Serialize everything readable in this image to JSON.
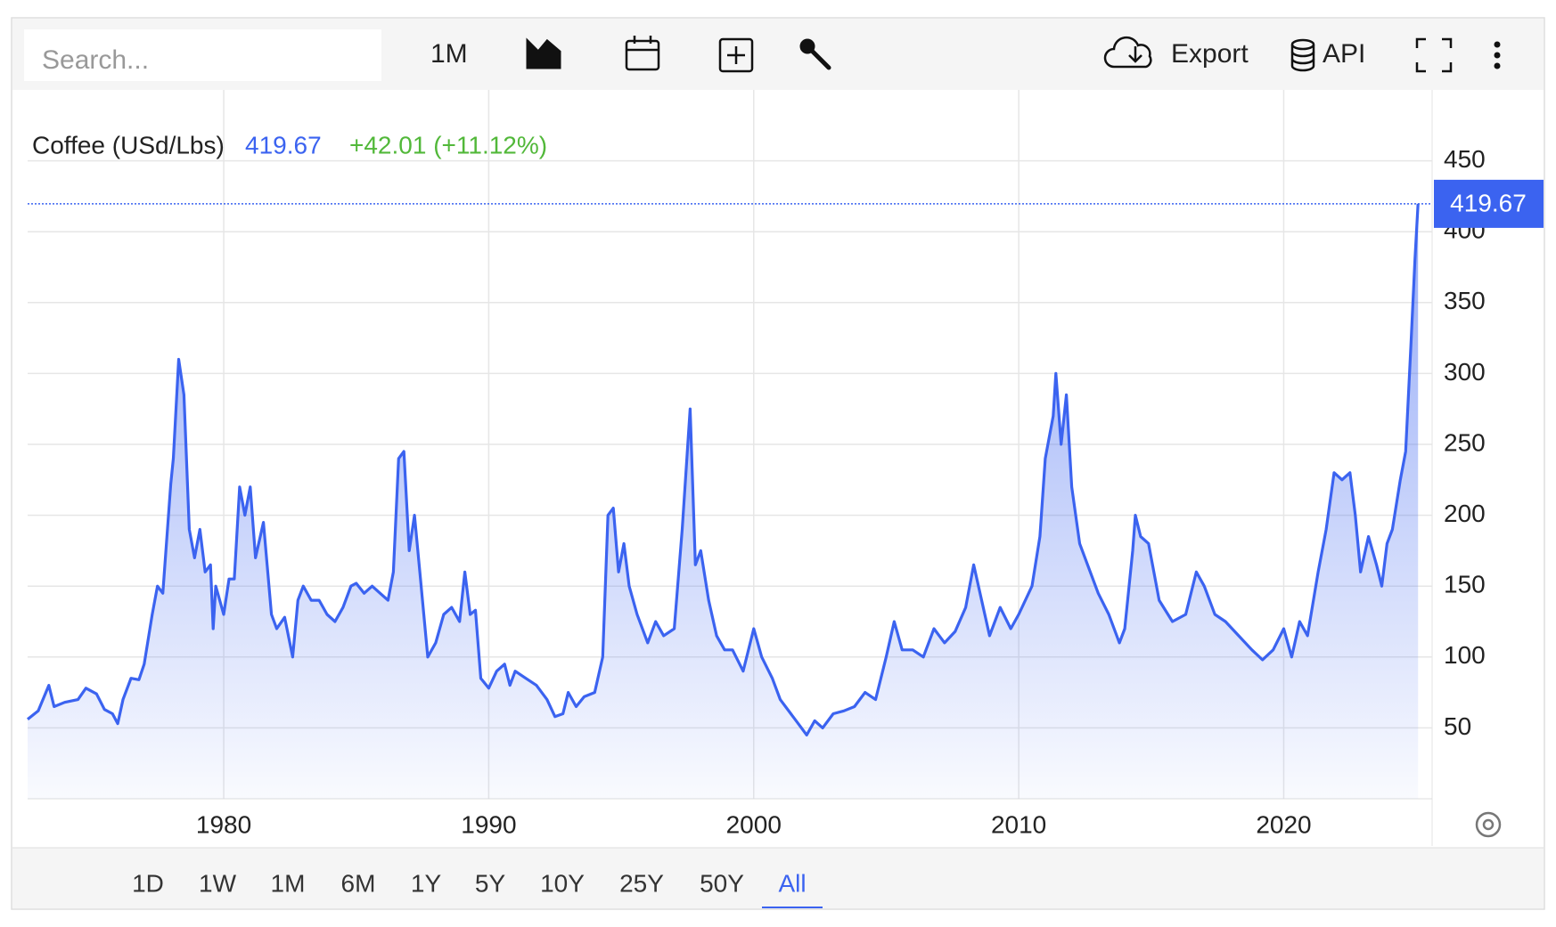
{
  "toolbar": {
    "search": "Search...",
    "interval": "1M",
    "export": "Export",
    "api": "API"
  },
  "range_buttons": [
    "1D",
    "1W",
    "1M",
    "6M",
    "1Y",
    "5Y",
    "10Y",
    "25Y",
    "50Y",
    "All"
  ],
  "active_range": "All",
  "chart_data": {
    "type": "area",
    "title": "Coffee (USd/Lbs)",
    "last_value": 419.67,
    "change": "+42.01 (+11.12%)",
    "color": "#3b63f0",
    "grid": true,
    "xlim": [
      1972.6,
      2025.6
    ],
    "xticks": [
      1980,
      1990,
      2000,
      2010,
      2020
    ],
    "ylim": [
      0,
      500
    ],
    "yticks": [
      50,
      100,
      150,
      200,
      250,
      300,
      350,
      400,
      450
    ],
    "x": [
      1972.6,
      1973.0,
      1973.4,
      1973.6,
      1974.0,
      1974.5,
      1974.8,
      1975.2,
      1975.5,
      1975.8,
      1976.0,
      1976.2,
      1976.5,
      1976.8,
      1977.0,
      1977.3,
      1977.5,
      1977.7,
      1978.0,
      1978.1,
      1978.3,
      1978.5,
      1978.7,
      1978.9,
      1979.1,
      1979.3,
      1979.5,
      1979.6,
      1979.7,
      1980.0,
      1980.2,
      1980.4,
      1980.6,
      1980.8,
      1981.0,
      1981.2,
      1981.5,
      1981.8,
      1982.0,
      1982.3,
      1982.6,
      1982.8,
      1983.0,
      1983.3,
      1983.6,
      1983.9,
      1984.2,
      1984.5,
      1984.8,
      1985.0,
      1985.3,
      1985.6,
      1985.9,
      1986.2,
      1986.4,
      1986.6,
      1986.8,
      1987.0,
      1987.2,
      1987.4,
      1987.7,
      1988.0,
      1988.3,
      1988.6,
      1988.9,
      1989.1,
      1989.3,
      1989.5,
      1989.7,
      1990.0,
      1990.3,
      1990.6,
      1990.8,
      1991.0,
      1991.4,
      1991.8,
      1992.2,
      1992.5,
      1992.8,
      1993.0,
      1993.3,
      1993.6,
      1994.0,
      1994.3,
      1994.5,
      1994.7,
      1994.9,
      1995.1,
      1995.3,
      1995.6,
      1996.0,
      1996.3,
      1996.6,
      1997.0,
      1997.3,
      1997.6,
      1997.8,
      1998.0,
      1998.3,
      1998.6,
      1998.9,
      1999.2,
      1999.6,
      2000.0,
      2000.3,
      2000.7,
      2001.0,
      2001.4,
      2001.8,
      2002.0,
      2002.3,
      2002.6,
      2003.0,
      2003.4,
      2003.8,
      2004.2,
      2004.6,
      2005.0,
      2005.3,
      2005.6,
      2006.0,
      2006.4,
      2006.8,
      2007.2,
      2007.6,
      2008.0,
      2008.3,
      2008.6,
      2008.9,
      2009.3,
      2009.7,
      2010.0,
      2010.5,
      2010.8,
      2011.0,
      2011.3,
      2011.4,
      2011.6,
      2011.8,
      2012.0,
      2012.3,
      2012.6,
      2013.0,
      2013.4,
      2013.8,
      2014.0,
      2014.3,
      2014.4,
      2014.6,
      2014.9,
      2015.3,
      2015.8,
      2016.3,
      2016.7,
      2017.0,
      2017.4,
      2017.8,
      2018.3,
      2018.8,
      2019.2,
      2019.6,
      2020.0,
      2020.3,
      2020.6,
      2020.9,
      2021.3,
      2021.6,
      2021.9,
      2022.2,
      2022.5,
      2022.7,
      2022.9,
      2023.2,
      2023.5,
      2023.7,
      2023.9,
      2024.1,
      2024.4,
      2024.6,
      2024.8,
      2024.95,
      2025.07
    ],
    "values": [
      56,
      62,
      80,
      65,
      68,
      70,
      78,
      74,
      63,
      60,
      53,
      70,
      85,
      84,
      95,
      130,
      150,
      145,
      222,
      240,
      310,
      285,
      190,
      170,
      190,
      160,
      165,
      120,
      150,
      130,
      155,
      155,
      220,
      200,
      220,
      170,
      195,
      130,
      120,
      128,
      100,
      140,
      150,
      140,
      140,
      130,
      125,
      135,
      150,
      152,
      145,
      150,
      145,
      140,
      160,
      240,
      245,
      175,
      200,
      160,
      100,
      110,
      130,
      135,
      125,
      160,
      130,
      133,
      85,
      78,
      90,
      95,
      80,
      90,
      85,
      80,
      70,
      58,
      60,
      75,
      65,
      72,
      75,
      100,
      200,
      205,
      160,
      180,
      150,
      130,
      110,
      125,
      115,
      120,
      190,
      275,
      165,
      175,
      140,
      115,
      105,
      105,
      90,
      120,
      100,
      85,
      70,
      60,
      50,
      45,
      55,
      50,
      60,
      62,
      65,
      75,
      70,
      100,
      125,
      105,
      105,
      100,
      120,
      110,
      118,
      135,
      165,
      140,
      115,
      135,
      120,
      130,
      150,
      185,
      240,
      270,
      300,
      250,
      285,
      220,
      180,
      165,
      145,
      130,
      110,
      120,
      175,
      200,
      185,
      180,
      140,
      125,
      130,
      160,
      150,
      130,
      125,
      115,
      105,
      98,
      105,
      120,
      100,
      125,
      115,
      160,
      190,
      230,
      225,
      230,
      200,
      160,
      185,
      165,
      150,
      180,
      190,
      225,
      245,
      320,
      380,
      419.67
    ]
  }
}
